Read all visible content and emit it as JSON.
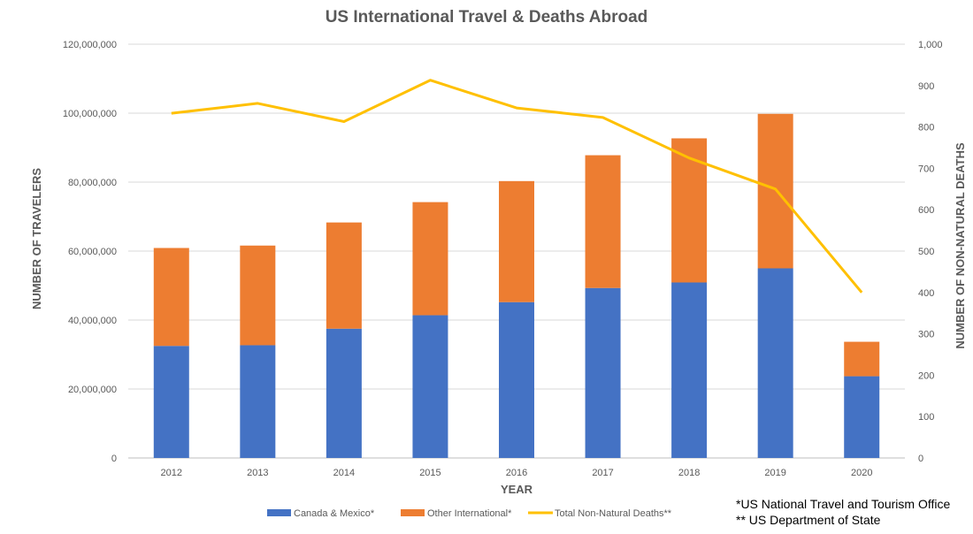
{
  "chart_data": {
    "type": "bar",
    "stacked": true,
    "title": "US International Travel & Deaths Abroad",
    "xlabel": "YEAR",
    "ylabel": "NUMBER OF TRAVELERS",
    "y2label": "NUMBER OF NON-NATURAL DEATHS",
    "categories": [
      "2012",
      "2013",
      "2014",
      "2015",
      "2016",
      "2017",
      "2018",
      "2019",
      "2020"
    ],
    "ylim": [
      0,
      120000000
    ],
    "y2lim": [
      0,
      1000
    ],
    "yticks": [
      "0",
      "20,000,000",
      "40,000,000",
      "60,000,000",
      "80,000,000",
      "100,000,000",
      "120,000,000"
    ],
    "y2ticks": [
      "0",
      "100",
      "200",
      "300",
      "400",
      "500",
      "600",
      "700",
      "800",
      "900",
      "1,000"
    ],
    "grid": true,
    "legend_position": "bottom",
    "series": [
      {
        "name": "Canada & Mexico*",
        "type": "bar",
        "axis": "left",
        "color": "#4472C4",
        "values": [
          32500000,
          32700000,
          37500000,
          41400000,
          45200000,
          49300000,
          50900000,
          55000000,
          23700000
        ]
      },
      {
        "name": "Other International*",
        "type": "bar",
        "axis": "left",
        "color": "#ED7D31",
        "values": [
          28400000,
          28900000,
          30800000,
          32800000,
          35100000,
          38500000,
          41800000,
          44800000,
          10000000
        ]
      },
      {
        "name": "Total Non-Natural Deaths**",
        "type": "line",
        "axis": "right",
        "color": "#FFC000",
        "values": [
          833,
          857,
          813,
          913,
          846,
          823,
          725,
          650,
          400
        ]
      }
    ]
  },
  "notes": [
    "*US National Travel and Tourism Office",
    "** US Department of State"
  ]
}
